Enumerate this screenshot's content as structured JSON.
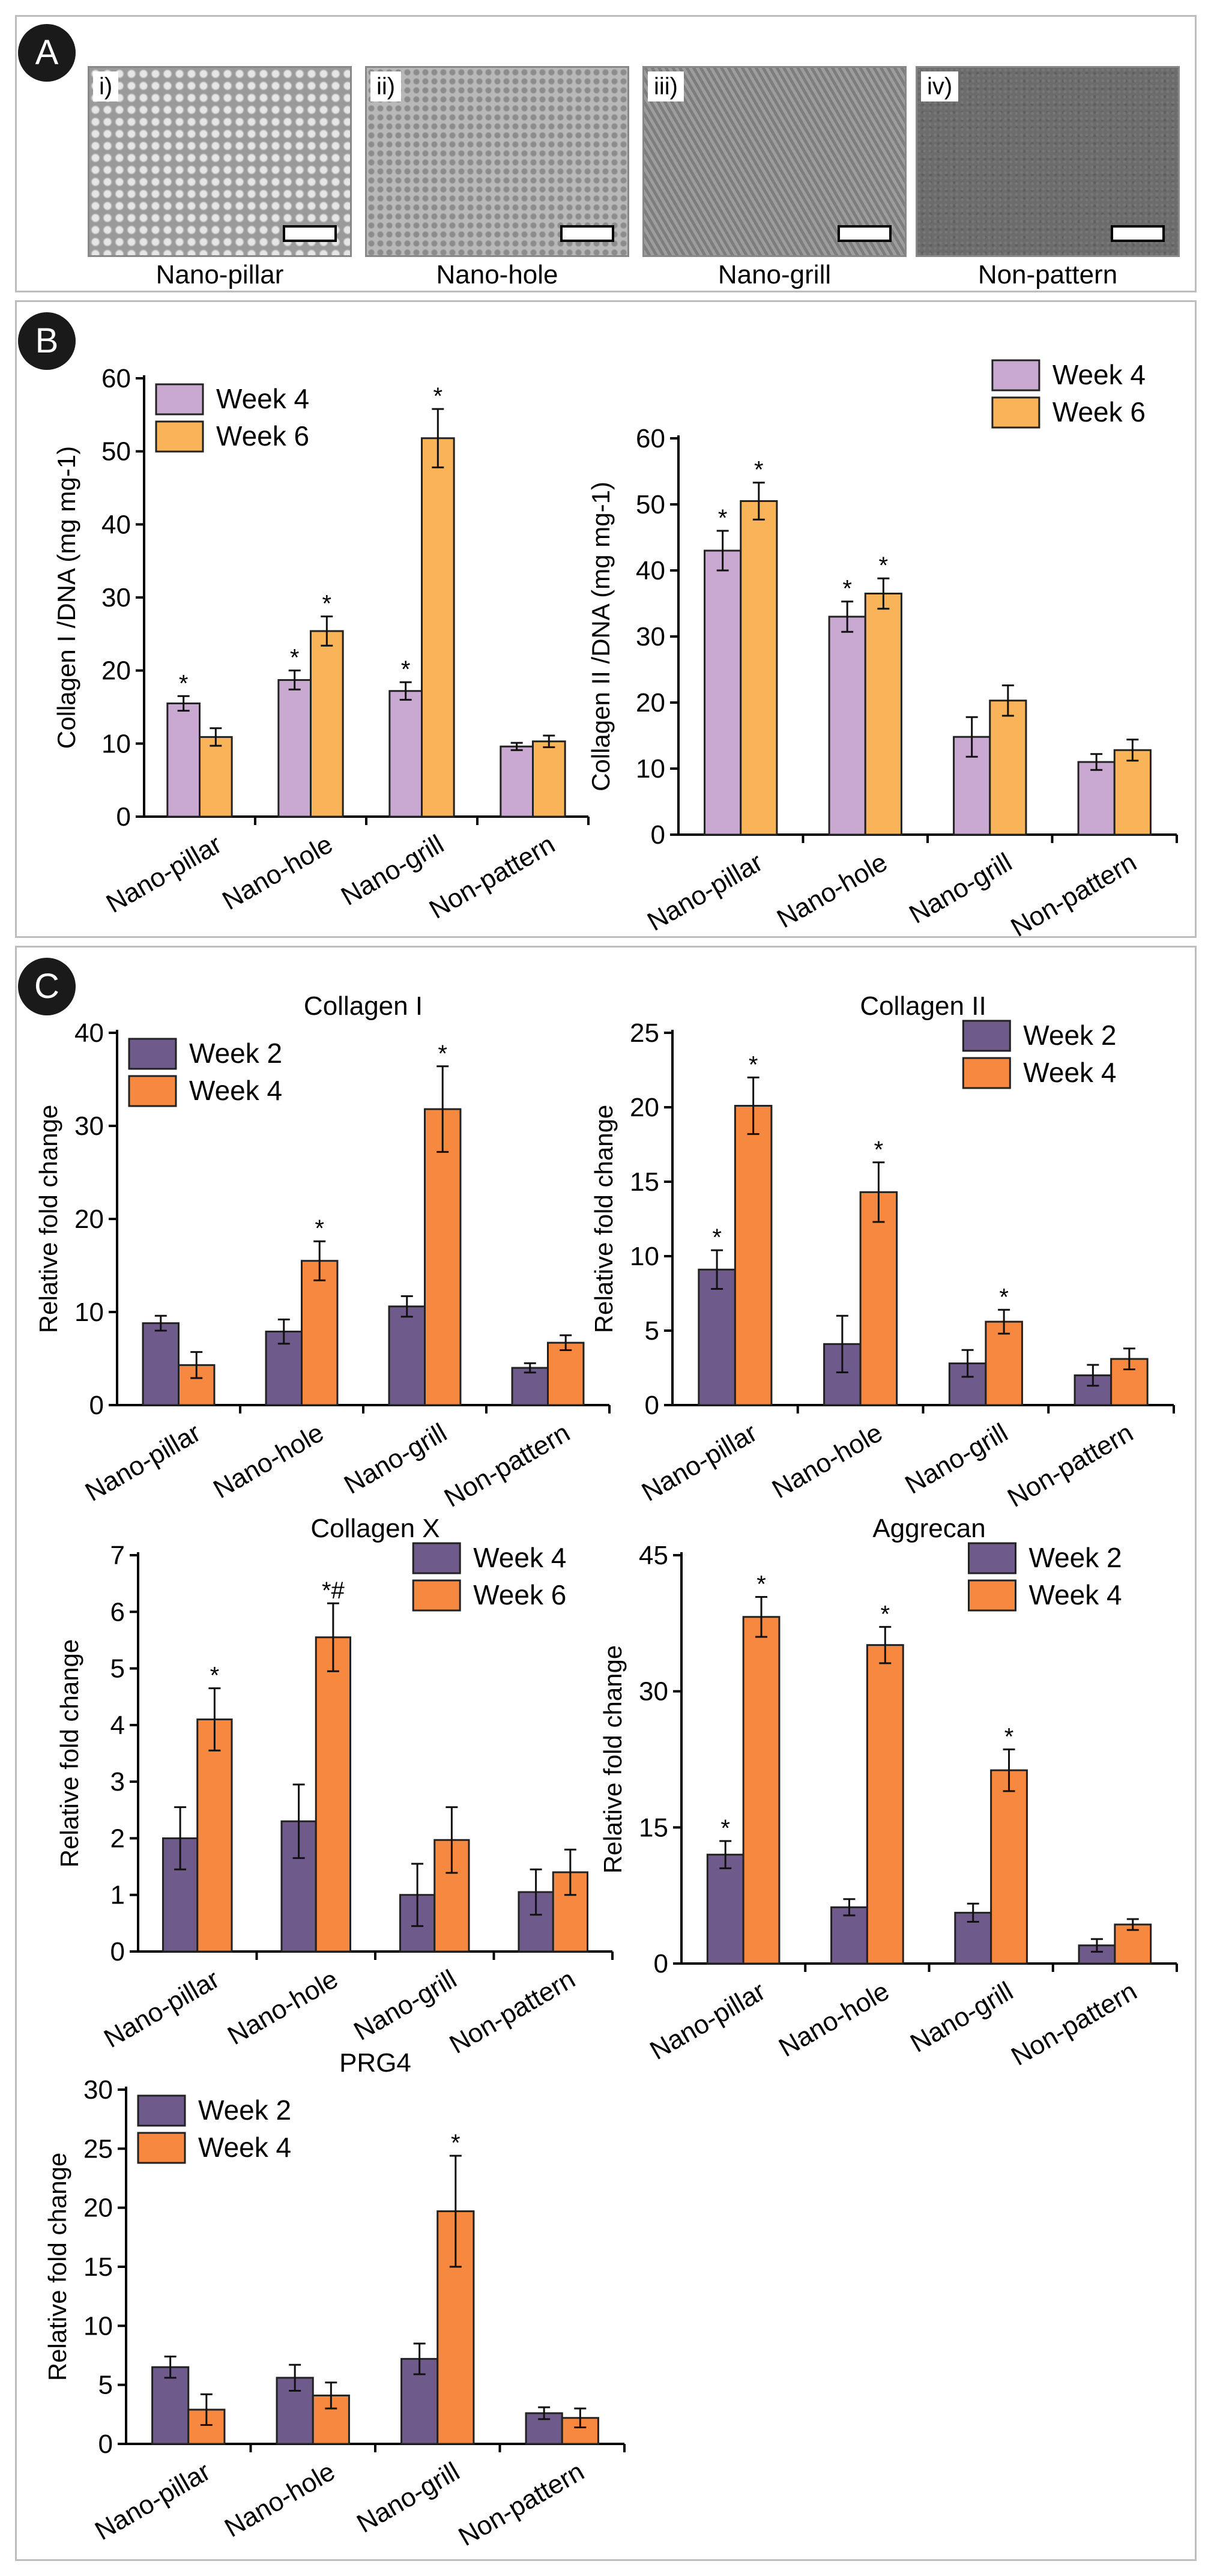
{
  "panels": {
    "A": "A",
    "B": "B",
    "C": "C"
  },
  "panelA": {
    "tags": [
      "i)",
      "ii)",
      "iii)",
      "iv)"
    ],
    "captions": [
      "Nano-pillar",
      "Nano-hole",
      "Nano-grill",
      "Non-pattern"
    ]
  },
  "colors": {
    "b_w4": "#c9a9d2",
    "b_w6": "#f9b45a",
    "c_early": "#6e5a8b",
    "c_late": "#f6893f"
  },
  "chart_data": [
    {
      "id": "B1",
      "type": "bar",
      "title": "",
      "ylabel": "Collagen I /DNA (mg mg-1)",
      "categories": [
        "Nano-pillar",
        "Nano-hole",
        "Nano-grill",
        "Non-pattern"
      ],
      "ylim": [
        0,
        60
      ],
      "yticks": [
        0,
        10,
        20,
        30,
        40,
        50,
        60
      ],
      "legend_position": "top-left",
      "series": [
        {
          "name": "Week 4",
          "values": [
            15.5,
            18.7,
            17.2,
            9.6
          ],
          "errors": [
            1.0,
            1.3,
            1.2,
            0.5
          ],
          "stars": [
            "*",
            "*",
            "*",
            ""
          ]
        },
        {
          "name": "Week 6",
          "values": [
            10.9,
            25.4,
            51.8,
            10.3
          ],
          "errors": [
            1.2,
            2.0,
            4.0,
            0.8
          ],
          "stars": [
            "",
            "*",
            "*",
            ""
          ]
        }
      ]
    },
    {
      "id": "B2",
      "type": "bar",
      "title": "",
      "ylabel": "Collagen II /DNA (mg mg-1)",
      "categories": [
        "Nano-pillar",
        "Nano-hole",
        "Nano-grill",
        "Non-pattern"
      ],
      "ylim": [
        0,
        60
      ],
      "yticks": [
        0,
        10,
        20,
        30,
        40,
        50,
        60
      ],
      "legend_position": "top-right",
      "series": [
        {
          "name": "Week 4",
          "values": [
            43.0,
            33.0,
            14.8,
            11.0
          ],
          "errors": [
            3.0,
            2.3,
            3.0,
            1.2
          ],
          "stars": [
            "*",
            "*",
            "",
            ""
          ]
        },
        {
          "name": "Week 6",
          "values": [
            50.5,
            36.5,
            20.3,
            12.8
          ],
          "errors": [
            2.8,
            2.3,
            2.3,
            1.6
          ],
          "stars": [
            "*",
            "*",
            "",
            ""
          ]
        }
      ]
    },
    {
      "id": "C1",
      "type": "bar",
      "title": "Collagen I",
      "ylabel": "Relative fold change",
      "categories": [
        "Nano-pillar",
        "Nano-hole",
        "Nano-grill",
        "Non-pattern"
      ],
      "ylim": [
        0,
        40
      ],
      "yticks": [
        0,
        10,
        20,
        30,
        40
      ],
      "legend_position": "top-left",
      "series": [
        {
          "name": "Week 2",
          "values": [
            8.8,
            7.9,
            10.6,
            4.0
          ],
          "errors": [
            0.8,
            1.3,
            1.1,
            0.5
          ],
          "stars": [
            "",
            "",
            "",
            ""
          ]
        },
        {
          "name": "Week 4",
          "values": [
            4.3,
            15.5,
            31.8,
            6.7
          ],
          "errors": [
            1.4,
            2.1,
            4.6,
            0.8
          ],
          "stars": [
            "",
            "*",
            "*",
            ""
          ]
        }
      ]
    },
    {
      "id": "C2",
      "type": "bar",
      "title": "Collagen II",
      "ylabel": "Relative fold change",
      "categories": [
        "Nano-pillar",
        "Nano-hole",
        "Nano-grill",
        "Non-pattern"
      ],
      "ylim": [
        0,
        25
      ],
      "yticks": [
        0,
        5,
        10,
        15,
        20,
        25
      ],
      "legend_position": "top-right",
      "series": [
        {
          "name": "Week 2",
          "values": [
            9.1,
            4.1,
            2.8,
            2.0
          ],
          "errors": [
            1.3,
            1.9,
            0.9,
            0.7
          ],
          "stars": [
            "*",
            "",
            "",
            ""
          ]
        },
        {
          "name": "Week 4",
          "values": [
            20.1,
            14.3,
            5.6,
            3.1
          ],
          "errors": [
            1.9,
            2.0,
            0.8,
            0.7
          ],
          "stars": [
            "*",
            "*",
            "*",
            ""
          ]
        }
      ]
    },
    {
      "id": "C3",
      "type": "bar",
      "title": "Collagen X",
      "ylabel": "Relative fold change",
      "categories": [
        "Nano-pillar",
        "Nano-hole",
        "Nano-grill",
        "Non-pattern"
      ],
      "ylim": [
        0,
        7
      ],
      "yticks": [
        0,
        1,
        2,
        3,
        4,
        5,
        6,
        7
      ],
      "legend_position": "top-right",
      "series": [
        {
          "name": "Week 4",
          "values": [
            2.0,
            2.3,
            1.0,
            1.05
          ],
          "errors": [
            0.55,
            0.65,
            0.55,
            0.4
          ],
          "stars": [
            "",
            "",
            "",
            ""
          ]
        },
        {
          "name": "Week 6",
          "values": [
            4.1,
            5.55,
            1.97,
            1.4
          ],
          "errors": [
            0.55,
            0.6,
            0.58,
            0.4
          ],
          "stars": [
            "*",
            "*#",
            "",
            ""
          ]
        }
      ]
    },
    {
      "id": "C4",
      "type": "bar",
      "title": "Aggrecan",
      "ylabel": "Relative fold change",
      "categories": [
        "Nano-pillar",
        "Nano-hole",
        "Nano-grill",
        "Non-pattern"
      ],
      "ylim": [
        0,
        45
      ],
      "yticks": [
        0,
        15,
        30,
        45
      ],
      "legend_position": "top-right",
      "series": [
        {
          "name": "Week 2",
          "values": [
            12.0,
            6.2,
            5.6,
            2.0
          ],
          "errors": [
            1.5,
            0.9,
            1.0,
            0.7
          ],
          "stars": [
            "*",
            "",
            "",
            ""
          ]
        },
        {
          "name": "Week 4",
          "values": [
            38.2,
            35.1,
            21.3,
            4.3
          ],
          "errors": [
            2.2,
            2.0,
            2.3,
            0.6
          ],
          "stars": [
            "*",
            "*",
            "*",
            ""
          ]
        }
      ]
    },
    {
      "id": "C5",
      "type": "bar",
      "title": "PRG4",
      "ylabel": "Relative fold change",
      "categories": [
        "Nano-pillar",
        "Nano-hole",
        "Nano-grill",
        "Non-pattern"
      ],
      "ylim": [
        0,
        30
      ],
      "yticks": [
        0,
        5,
        10,
        15,
        20,
        25,
        30
      ],
      "legend_position": "top-left",
      "series": [
        {
          "name": "Week 2",
          "values": [
            6.5,
            5.6,
            7.2,
            2.6
          ],
          "errors": [
            0.9,
            1.1,
            1.3,
            0.5
          ],
          "stars": [
            "",
            "",
            "",
            ""
          ]
        },
        {
          "name": "Week 4",
          "values": [
            2.9,
            4.1,
            19.7,
            2.2
          ],
          "errors": [
            1.3,
            1.1,
            4.7,
            0.8
          ],
          "stars": [
            "",
            "",
            "*",
            ""
          ]
        }
      ]
    }
  ]
}
